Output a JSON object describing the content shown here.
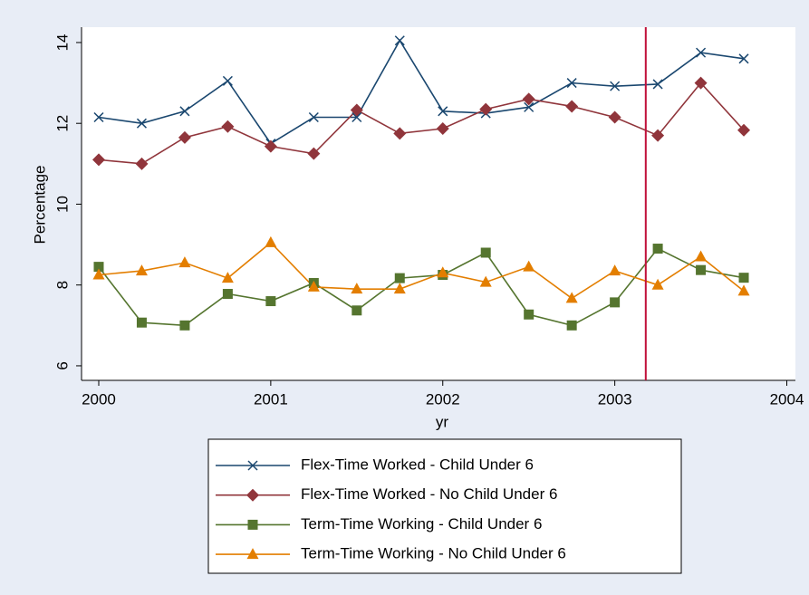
{
  "chart_data": {
    "type": "line",
    "x": [
      2000,
      2000.25,
      2000.5,
      2000.75,
      2001,
      2001.25,
      2001.5,
      2001.75,
      2002,
      2002.25,
      2002.5,
      2002.75,
      2003,
      2003.25,
      2003.5,
      2003.75
    ],
    "series": [
      {
        "name": "Flex-Time Worked - Child Under 6",
        "color": "#1a476f",
        "marker": "x",
        "values": [
          12.15,
          12.0,
          12.3,
          13.05,
          11.5,
          12.15,
          12.15,
          14.05,
          12.3,
          12.25,
          12.4,
          13.0,
          12.92,
          12.97,
          13.75,
          13.6
        ]
      },
      {
        "name": "Flex-Time Worked - No Child Under 6",
        "color": "#90353b",
        "marker": "diamond",
        "values": [
          11.1,
          11.0,
          11.65,
          11.92,
          11.43,
          11.25,
          12.33,
          11.75,
          11.87,
          12.35,
          12.6,
          12.42,
          12.15,
          11.7,
          13.0,
          11.83
        ]
      },
      {
        "name": "Term-Time Working - Child Under 6",
        "color": "#55752f",
        "marker": "square",
        "values": [
          8.45,
          7.07,
          7.0,
          7.78,
          7.6,
          8.05,
          7.37,
          8.17,
          8.25,
          8.8,
          7.27,
          7.0,
          7.57,
          8.9,
          8.37,
          8.18
        ]
      },
      {
        "name": "Term-Time Working - No Child Under 6",
        "color": "#e37e00",
        "marker": "triangle",
        "values": [
          8.25,
          8.35,
          8.55,
          8.17,
          9.05,
          7.95,
          7.9,
          7.9,
          8.3,
          8.07,
          8.45,
          7.67,
          8.35,
          8.0,
          8.7,
          7.85
        ]
      }
    ],
    "xlabel": "yr",
    "ylabel": "Percentage",
    "xlim": [
      1999.9,
      2004.05
    ],
    "xticks": [
      2000,
      2001,
      2002,
      2003,
      2004
    ],
    "ylim": [
      5.64,
      14.38
    ],
    "yticks": [
      6,
      8,
      10,
      12,
      14
    ],
    "vline": {
      "x": 2003.18,
      "color": "#c0103a"
    },
    "legend": "bottom"
  }
}
